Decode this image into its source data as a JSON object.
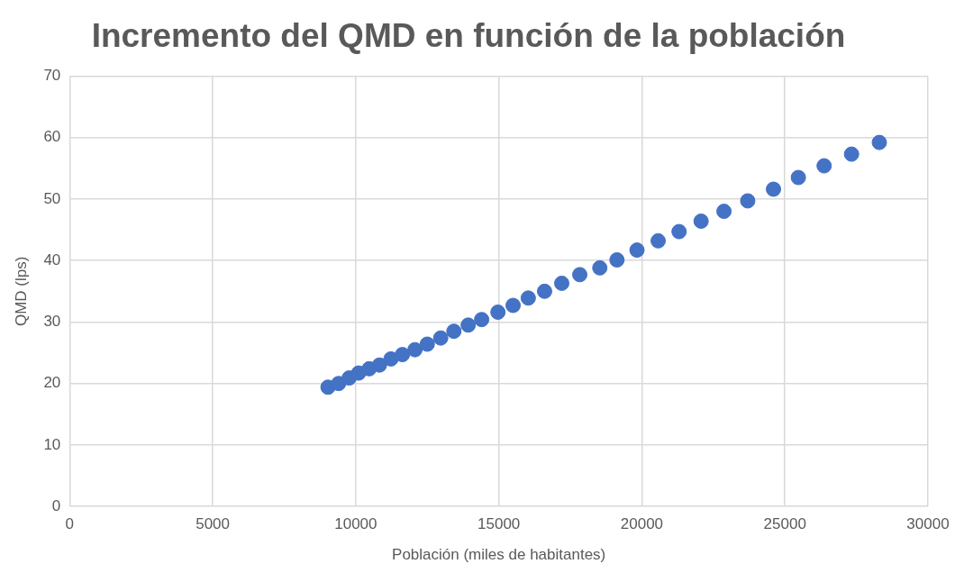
{
  "chart_data": {
    "type": "scatter",
    "title": "Incremento del QMD en función de la población",
    "xlabel": "Población (miles de habitantes)",
    "ylabel": "QMD (lps)",
    "x": [
      9030,
      9400,
      9770,
      10100,
      10470,
      10830,
      11230,
      11630,
      12070,
      12500,
      12970,
      13430,
      13930,
      14400,
      14970,
      15500,
      16030,
      16600,
      17200,
      17830,
      18530,
      19130,
      19830,
      20570,
      21300,
      22070,
      22870,
      23700,
      24600,
      25470,
      26370,
      27330,
      28300
    ],
    "series": [
      {
        "color": "#4472c4",
        "values": [
          19.4,
          20.0,
          20.9,
          21.7,
          22.4,
          23.0,
          24.0,
          24.7,
          25.5,
          26.4,
          27.4,
          28.5,
          29.5,
          30.4,
          31.6,
          32.7,
          33.9,
          35.0,
          36.3,
          37.7,
          38.8,
          40.1,
          41.7,
          43.2,
          44.7,
          46.4,
          48.0,
          49.7,
          51.6,
          53.5,
          55.4,
          57.3,
          59.2
        ]
      }
    ],
    "xlim": [
      0,
      30000
    ],
    "xticks": [
      0,
      5000,
      10000,
      15000,
      20000,
      25000,
      30000
    ],
    "ylim": [
      0,
      70
    ],
    "yticks": [
      0,
      10,
      20,
      30,
      40,
      50,
      60,
      70
    ],
    "grid": true,
    "marker": "circle",
    "legend": false
  }
}
